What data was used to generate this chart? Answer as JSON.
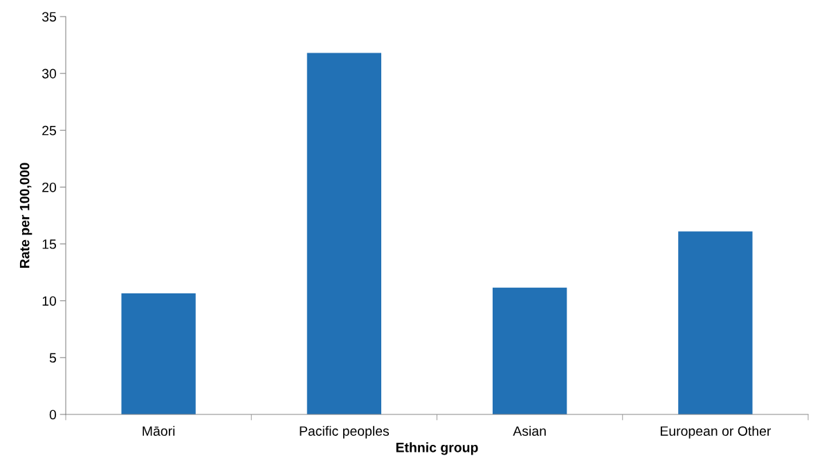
{
  "chart_data": {
    "type": "bar",
    "xlabel": "Ethnic group",
    "ylabel": "Rate per 100,000",
    "categories": [
      "Māori",
      "Pacific peoples",
      "Asian",
      "European or Other"
    ],
    "values": [
      10.65,
      31.8,
      11.15,
      16.1
    ],
    "color": "#2271b5",
    "ylim": [
      0,
      35
    ],
    "yticks": [
      0,
      5,
      10,
      15,
      20,
      25,
      30,
      35
    ],
    "grid": false,
    "legend": false
  }
}
